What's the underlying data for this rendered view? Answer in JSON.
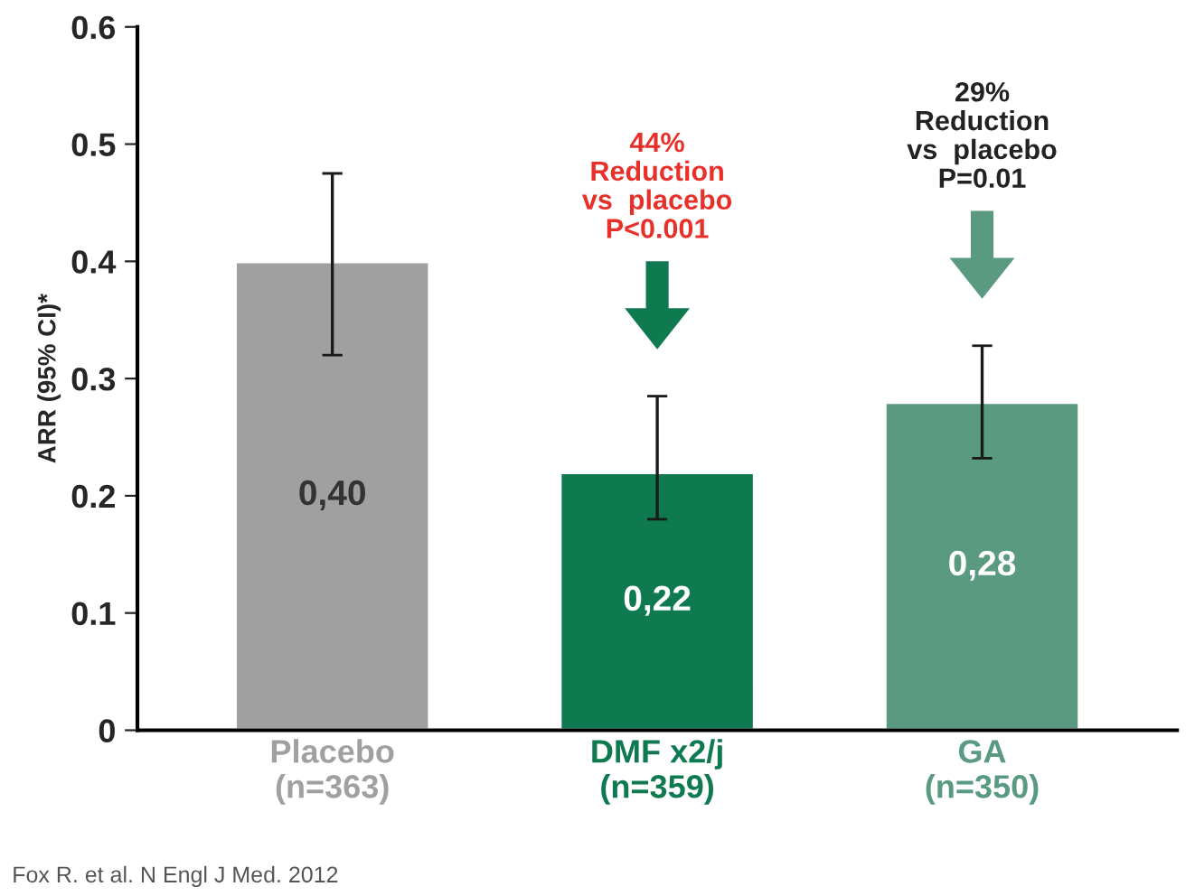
{
  "chart_data": {
    "type": "bar",
    "ylabel": "ARR (95% CI)*",
    "categories": [
      "Placebo\n(n=363)",
      "DMF x2/j\n(n=359)",
      "GA\n(n=350)"
    ],
    "values": [
      0.4,
      0.22,
      0.28
    ],
    "value_labels": [
      "0,40",
      "0,22",
      "0,28"
    ],
    "errors": [
      [
        0.32,
        0.475
      ],
      [
        0.18,
        0.285
      ],
      [
        0.232,
        0.328
      ]
    ],
    "colors": [
      "#a0a0a0",
      "#0f7a50",
      "#5a9a80"
    ],
    "ylim": [
      0,
      0.6
    ],
    "yticks": [
      0,
      0.1,
      0.2,
      0.3,
      0.4,
      0.5,
      0.6
    ],
    "grid": false,
    "legend": false,
    "annotations": [
      "44%\nReduction\nvs  placebo\nP<0.001",
      "29%\nReduction\nvs  placebo\nP=0.01",
      "Fox R. et al. N Engl J Med. 2012"
    ]
  }
}
